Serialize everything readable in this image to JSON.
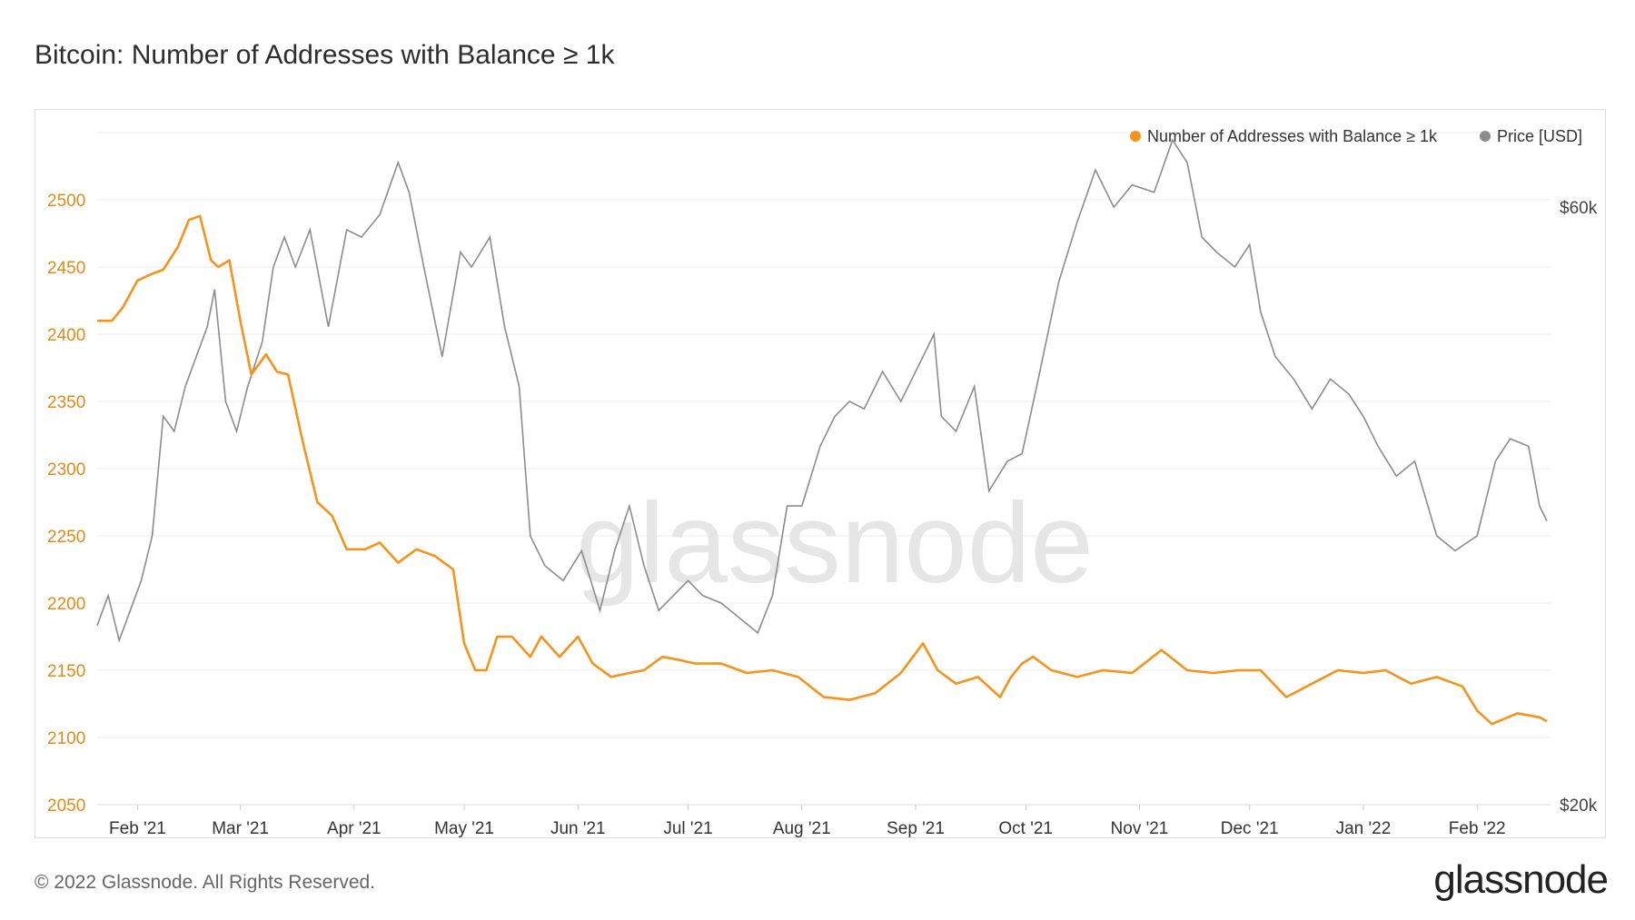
{
  "title": "Bitcoin: Number of Addresses with Balance ≥ 1k",
  "footer": "© 2022 Glassnode. All Rights Reserved.",
  "brand": "glassnode",
  "watermark": "glassnode",
  "colors": {
    "orange": "#f7931a",
    "gray": "#8c8c8c",
    "grid": "#ececec"
  },
  "chart_data": {
    "type": "line",
    "title": "Bitcoin: Number of Addresses with Balance ≥ 1k",
    "legend": [
      "Number of Addresses with Balance ≥ 1k",
      "Price [USD]"
    ],
    "legend_position": "top-right",
    "x_ticks": [
      "Feb '21",
      "Mar '21",
      "Apr '21",
      "May '21",
      "Jun '21",
      "Jul '21",
      "Aug '21",
      "Sep '21",
      "Oct '21",
      "Nov '21",
      "Dec '21",
      "Jan '22",
      "Feb '22"
    ],
    "y_left_ticks": [
      2050,
      2100,
      2150,
      2200,
      2250,
      2300,
      2350,
      2400,
      2450,
      2500
    ],
    "y_left_range": [
      2050,
      2550
    ],
    "y_right_ticks": [
      "$20k",
      "$60k"
    ],
    "y_right_range": [
      20000,
      65000
    ],
    "series": [
      {
        "name": "Number of Addresses with Balance ≥ 1k",
        "axis": "left",
        "color": "#f7931a",
        "x": [
          "2021-01-21",
          "2021-01-25",
          "2021-01-28",
          "2021-02-01",
          "2021-02-05",
          "2021-02-08",
          "2021-02-12",
          "2021-02-15",
          "2021-02-18",
          "2021-02-21",
          "2021-02-23",
          "2021-02-26",
          "2021-03-01",
          "2021-03-04",
          "2021-03-08",
          "2021-03-11",
          "2021-03-14",
          "2021-03-18",
          "2021-03-22",
          "2021-03-26",
          "2021-03-30",
          "2021-04-04",
          "2021-04-08",
          "2021-04-13",
          "2021-04-18",
          "2021-04-23",
          "2021-04-28",
          "2021-05-01",
          "2021-05-04",
          "2021-05-07",
          "2021-05-10",
          "2021-05-14",
          "2021-05-19",
          "2021-05-22",
          "2021-05-27",
          "2021-06-01",
          "2021-06-05",
          "2021-06-10",
          "2021-06-15",
          "2021-06-19",
          "2021-06-24",
          "2021-06-28",
          "2021-07-03",
          "2021-07-10",
          "2021-07-17",
          "2021-07-24",
          "2021-07-31",
          "2021-08-07",
          "2021-08-14",
          "2021-08-21",
          "2021-08-28",
          "2021-09-03",
          "2021-09-07",
          "2021-09-12",
          "2021-09-18",
          "2021-09-24",
          "2021-09-27",
          "2021-09-30",
          "2021-10-03",
          "2021-10-08",
          "2021-10-15",
          "2021-10-22",
          "2021-10-30",
          "2021-11-07",
          "2021-11-14",
          "2021-11-21",
          "2021-11-28",
          "2021-12-04",
          "2021-12-11",
          "2021-12-18",
          "2021-12-25",
          "2022-01-01",
          "2022-01-07",
          "2022-01-14",
          "2022-01-21",
          "2022-01-28",
          "2022-02-01",
          "2022-02-05",
          "2022-02-12",
          "2022-02-18",
          "2022-02-20"
        ],
        "values": [
          2410,
          2410,
          2420,
          2440,
          2445,
          2448,
          2465,
          2485,
          2488,
          2455,
          2450,
          2455,
          2410,
          2370,
          2385,
          2372,
          2370,
          2320,
          2275,
          2265,
          2240,
          2240,
          2245,
          2230,
          2240,
          2235,
          2225,
          2170,
          2150,
          2150,
          2175,
          2175,
          2160,
          2175,
          2160,
          2175,
          2155,
          2145,
          2148,
          2150,
          2160,
          2158,
          2155,
          2155,
          2148,
          2150,
          2145,
          2130,
          2128,
          2133,
          2148,
          2170,
          2150,
          2140,
          2145,
          2130,
          2145,
          2155,
          2160,
          2150,
          2145,
          2150,
          2148,
          2165,
          2150,
          2148,
          2150,
          2150,
          2130,
          2140,
          2150,
          2148,
          2150,
          2140,
          2145,
          2138,
          2120,
          2110,
          2118,
          2115,
          2112
        ]
      },
      {
        "name": "Price [USD]",
        "axis": "right",
        "color": "#8c8c8c",
        "x": [
          "2021-01-21",
          "2021-01-24",
          "2021-01-27",
          "2021-01-30",
          "2021-02-02",
          "2021-02-05",
          "2021-02-08",
          "2021-02-11",
          "2021-02-14",
          "2021-02-17",
          "2021-02-20",
          "2021-02-22",
          "2021-02-25",
          "2021-02-28",
          "2021-03-03",
          "2021-03-07",
          "2021-03-10",
          "2021-03-13",
          "2021-03-16",
          "2021-03-20",
          "2021-03-25",
          "2021-03-30",
          "2021-04-03",
          "2021-04-08",
          "2021-04-13",
          "2021-04-16",
          "2021-04-20",
          "2021-04-25",
          "2021-04-30",
          "2021-05-03",
          "2021-05-08",
          "2021-05-12",
          "2021-05-16",
          "2021-05-19",
          "2021-05-23",
          "2021-05-28",
          "2021-06-02",
          "2021-06-07",
          "2021-06-11",
          "2021-06-15",
          "2021-06-19",
          "2021-06-23",
          "2021-06-27",
          "2021-07-01",
          "2021-07-05",
          "2021-07-10",
          "2021-07-15",
          "2021-07-20",
          "2021-07-24",
          "2021-07-28",
          "2021-08-01",
          "2021-08-06",
          "2021-08-10",
          "2021-08-14",
          "2021-08-18",
          "2021-08-23",
          "2021-08-28",
          "2021-09-02",
          "2021-09-06",
          "2021-09-08",
          "2021-09-12",
          "2021-09-17",
          "2021-09-21",
          "2021-09-26",
          "2021-09-30",
          "2021-10-04",
          "2021-10-10",
          "2021-10-15",
          "2021-10-20",
          "2021-10-25",
          "2021-10-30",
          "2021-11-05",
          "2021-11-10",
          "2021-11-14",
          "2021-11-18",
          "2021-11-22",
          "2021-11-27",
          "2021-12-01",
          "2021-12-04",
          "2021-12-08",
          "2021-12-13",
          "2021-12-18",
          "2021-12-23",
          "2021-12-28",
          "2022-01-01",
          "2022-01-05",
          "2022-01-10",
          "2022-01-15",
          "2022-01-21",
          "2022-01-26",
          "2022-02-01",
          "2022-02-06",
          "2022-02-10",
          "2022-02-15",
          "2022-02-18",
          "2022-02-20"
        ],
        "values": [
          32000,
          34000,
          31000,
          33000,
          35000,
          38000,
          46000,
          45000,
          48000,
          50000,
          52000,
          54500,
          47000,
          45000,
          48000,
          51000,
          56000,
          58000,
          56000,
          58500,
          52000,
          58500,
          58000,
          59500,
          63000,
          61000,
          56000,
          50000,
          57000,
          56000,
          58000,
          52000,
          48000,
          38000,
          36000,
          35000,
          37000,
          33000,
          37000,
          40000,
          36000,
          33000,
          34000,
          35000,
          34000,
          33500,
          32500,
          31500,
          34000,
          40000,
          40000,
          44000,
          46000,
          47000,
          46500,
          49000,
          47000,
          49500,
          51500,
          46000,
          45000,
          48000,
          41000,
          43000,
          43500,
          48000,
          55000,
          59000,
          62500,
          60000,
          61500,
          61000,
          64500,
          63000,
          58000,
          57000,
          56000,
          57500,
          53000,
          50000,
          48500,
          46500,
          48500,
          47500,
          46000,
          44000,
          42000,
          43000,
          38000,
          37000,
          38000,
          43000,
          44500,
          44000,
          40000,
          39000
        ]
      }
    ]
  }
}
